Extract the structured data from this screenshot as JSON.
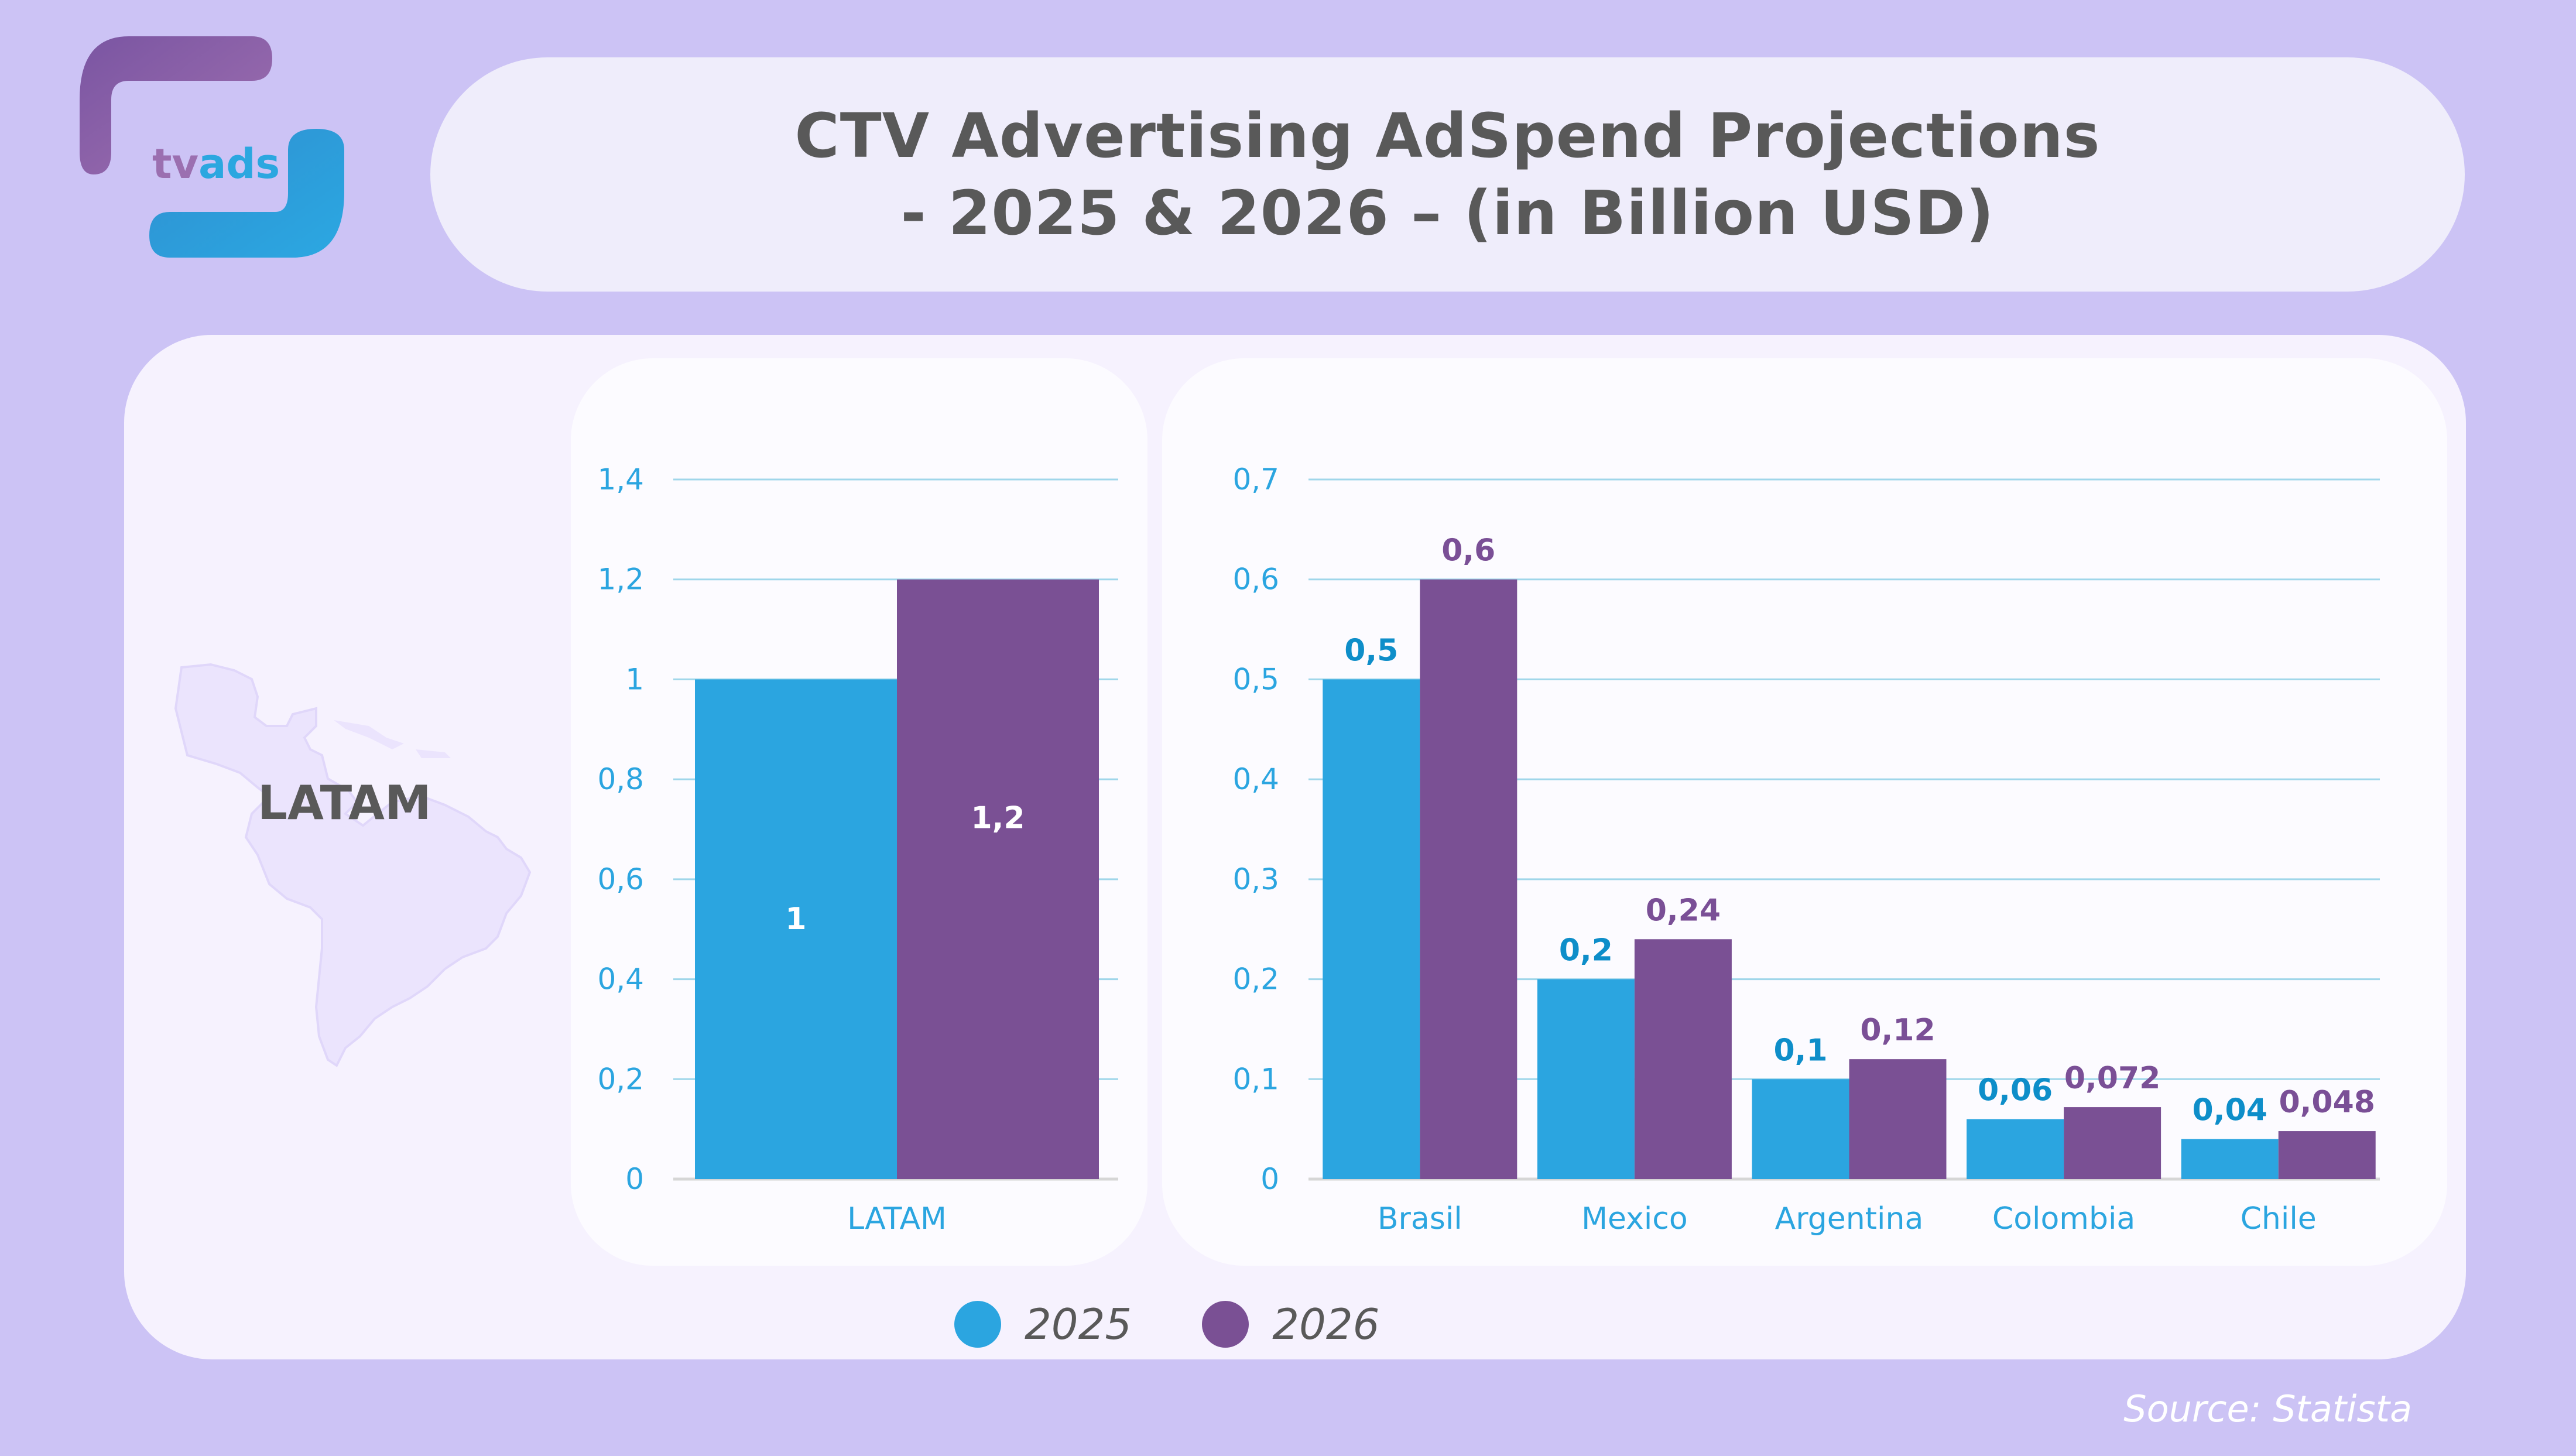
{
  "brand": {
    "logo_text_part1": "tv",
    "logo_text_part2": "ads",
    "purple": "#9b6fb0",
    "blue": "#2ba7e0"
  },
  "header": {
    "title_line1": "CTV Advertising AdSpend Projections",
    "title_line2": "- 2025 & 2026 – (in Billion USD)"
  },
  "region_label": "LATAM",
  "colors": {
    "series_2025": "#2ba5e0",
    "series_2026": "#7a5094",
    "label_2025": "#0e8ec9",
    "label_2026": "#7a4f96",
    "axis_text": "#2ba5e0",
    "grid": "#9fd6ea"
  },
  "legend": [
    {
      "label": "2025",
      "color": "#2ba5e0"
    },
    {
      "label": "2026",
      "color": "#7a5094"
    }
  ],
  "source": "Source: Statista",
  "chart_data": [
    {
      "type": "bar",
      "title": "",
      "xlabel": "",
      "ylabel": "",
      "categories": [
        "LATAM"
      ],
      "series": [
        {
          "name": "2025",
          "values": [
            1
          ]
        },
        {
          "name": "2026",
          "values": [
            1.2
          ]
        }
      ],
      "data_labels": {
        "2025": [
          "1"
        ],
        "2026": [
          "1,2"
        ]
      },
      "data_label_position": "inside",
      "ylim": [
        0,
        1.4
      ],
      "yticks": [
        0,
        0.2,
        0.4,
        0.6,
        0.8,
        1,
        1.2,
        1.4
      ],
      "ytick_labels": [
        "0",
        "0,2",
        "0,4",
        "0,6",
        "0,8",
        "1",
        "1,2",
        "1,4"
      ],
      "grid": true,
      "legend": "bottom"
    },
    {
      "type": "bar",
      "title": "",
      "xlabel": "",
      "ylabel": "",
      "categories": [
        "Brasil",
        "Mexico",
        "Argentina",
        "Colombia",
        "Chile"
      ],
      "series": [
        {
          "name": "2025",
          "values": [
            0.5,
            0.2,
            0.1,
            0.06,
            0.04
          ]
        },
        {
          "name": "2026",
          "values": [
            0.6,
            0.24,
            0.12,
            0.072,
            0.048
          ]
        }
      ],
      "data_labels": {
        "2025": [
          "0,5",
          "0,2",
          "0,1",
          "0,06",
          "0,04"
        ],
        "2026": [
          "0,6",
          "0,24",
          "0,12",
          "0,072",
          "0,048"
        ]
      },
      "data_label_position": "above",
      "ylim": [
        0,
        0.7
      ],
      "yticks": [
        0,
        0.1,
        0.2,
        0.3,
        0.4,
        0.5,
        0.6,
        0.7
      ],
      "ytick_labels": [
        "0",
        "0,1",
        "0,2",
        "0,3",
        "0,4",
        "0,5",
        "0,6",
        "0,7"
      ],
      "grid": true,
      "legend": "bottom"
    }
  ]
}
